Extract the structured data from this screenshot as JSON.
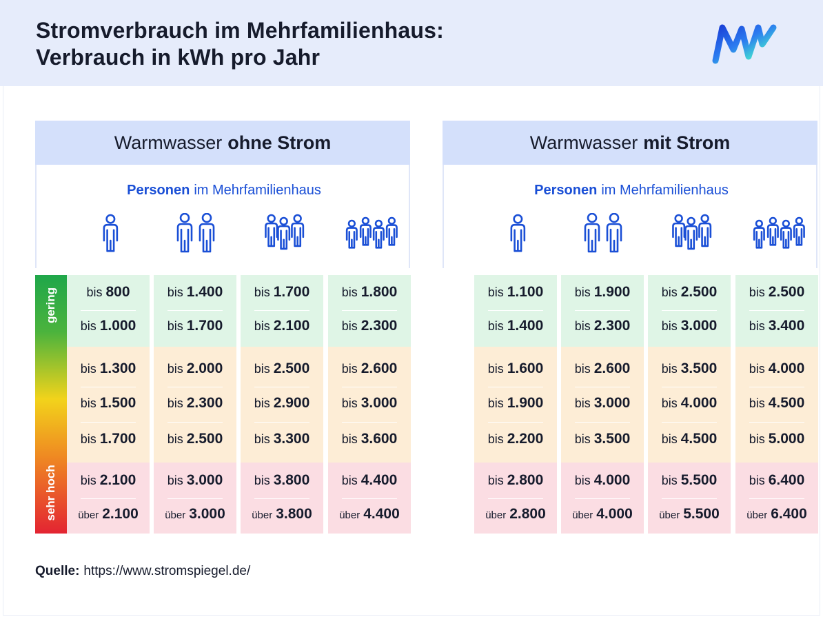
{
  "title_line1": "Stromverbrauch im Mehrfamilienhaus:",
  "title_line2": "Verbrauch in kWh pro Jahr",
  "scale": {
    "top_label": "gering",
    "bottom_label": "sehr hoch"
  },
  "colors": {
    "green_band": "#dff5e6",
    "orange_band": "#fdedd6",
    "red_band": "#fbdde3",
    "accent": "#1a4fd6",
    "header_bg": "#e6ecfb",
    "panel_head_bg": "#d4e0fb"
  },
  "icons": [
    "person-1-icon",
    "persons-2-icon",
    "persons-3-icon",
    "persons-4-icon",
    "brand-logo"
  ],
  "source": {
    "label": "Quelle:",
    "url": "https://www.stromspiegel.de/"
  },
  "chart_data": {
    "type": "table",
    "unit": "kWh pro Jahr",
    "columns": [
      "1 Person",
      "2 Personen",
      "3 Personen",
      "4 Personen"
    ],
    "panels": [
      {
        "title_regular": "Warmwasser",
        "title_bold": "ohne Strom",
        "persons_bold": "Personen",
        "persons_rest": "im Mehrfamilienhaus",
        "rows": [
          {
            "band": "green",
            "prefix": "bis",
            "values": [
              "800",
              "1.400",
              "1.700",
              "1.800"
            ]
          },
          {
            "band": "green",
            "prefix": "bis",
            "values": [
              "1.000",
              "1.700",
              "2.100",
              "2.300"
            ]
          },
          {
            "band": "orange",
            "prefix": "bis",
            "values": [
              "1.300",
              "2.000",
              "2.500",
              "2.600"
            ]
          },
          {
            "band": "orange",
            "prefix": "bis",
            "values": [
              "1.500",
              "2.300",
              "2.900",
              "3.000"
            ]
          },
          {
            "band": "orange",
            "prefix": "bis",
            "values": [
              "1.700",
              "2.500",
              "3.300",
              "3.600"
            ]
          },
          {
            "band": "red",
            "prefix": "bis",
            "values": [
              "2.100",
              "3.000",
              "3.800",
              "4.400"
            ]
          },
          {
            "band": "red",
            "prefix": "über",
            "values": [
              "2.100",
              "3.000",
              "3.800",
              "4.400"
            ]
          }
        ]
      },
      {
        "title_regular": "Warmwasser",
        "title_bold": "mit Strom",
        "persons_bold": "Personen",
        "persons_rest": "im Mehrfamilienhaus",
        "rows": [
          {
            "band": "green",
            "prefix": "bis",
            "values": [
              "1.100",
              "1.900",
              "2.500",
              "2.500"
            ]
          },
          {
            "band": "green",
            "prefix": "bis",
            "values": [
              "1.400",
              "2.300",
              "3.000",
              "3.400"
            ]
          },
          {
            "band": "orange",
            "prefix": "bis",
            "values": [
              "1.600",
              "2.600",
              "3.500",
              "4.000"
            ]
          },
          {
            "band": "orange",
            "prefix": "bis",
            "values": [
              "1.900",
              "3.000",
              "4.000",
              "4.500"
            ]
          },
          {
            "band": "orange",
            "prefix": "bis",
            "values": [
              "2.200",
              "3.500",
              "4.500",
              "5.000"
            ]
          },
          {
            "band": "red",
            "prefix": "bis",
            "values": [
              "2.800",
              "4.000",
              "5.500",
              "6.400"
            ]
          },
          {
            "band": "red",
            "prefix": "über",
            "values": [
              "2.800",
              "4.000",
              "5.500",
              "6.400"
            ]
          }
        ]
      }
    ]
  }
}
